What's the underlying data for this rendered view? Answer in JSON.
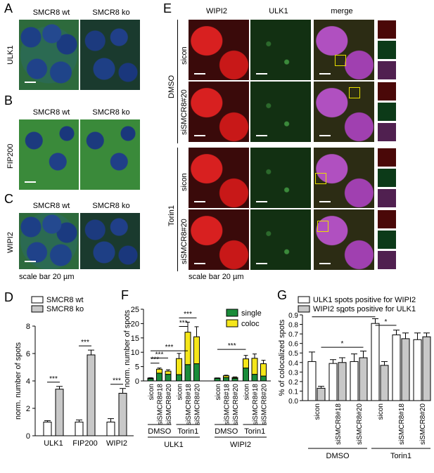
{
  "panels": {
    "A": {
      "letter": "A",
      "col_wt": "SMCR8 wt",
      "col_ko": "SMCR8 ko",
      "row": "ULK1"
    },
    "B": {
      "letter": "B",
      "col_wt": "SMCR8 wt",
      "col_ko": "SMCR8 ko",
      "row": "FIP200"
    },
    "C": {
      "letter": "C",
      "col_wt": "SMCR8 wt",
      "col_ko": "SMCR8 ko",
      "row": "WIPI2",
      "scale": "scale bar 20 µm"
    },
    "E": {
      "letter": "E",
      "col1": "WIPI2",
      "col2": "ULK1",
      "col3": "merge",
      "group1": "DMSO",
      "group2": "Torin1",
      "rows": [
        "sicon",
        "siSMCR8#20",
        "sicon",
        "siSMCR8#20"
      ],
      "scale": "scale bar 20 µm"
    },
    "D": {
      "letter": "D"
    },
    "F": {
      "letter": "F"
    },
    "G": {
      "letter": "G"
    }
  },
  "chart_data": [
    {
      "id": "D",
      "type": "bar",
      "ylabel": "norm. number of spots",
      "ylim": [
        0,
        8
      ],
      "yticks": [
        0,
        2,
        4,
        6,
        8
      ],
      "categories": [
        "ULK1",
        "FIP200",
        "WIPI2"
      ],
      "series": [
        {
          "name": "SMCR8 wt",
          "color": "#ffffff",
          "values": [
            1.0,
            1.0,
            1.0
          ],
          "errors": [
            0.1,
            0.15,
            0.25
          ]
        },
        {
          "name": "SMCR8 ko",
          "color": "#c8c8c8",
          "values": [
            3.4,
            5.9,
            3.1
          ],
          "errors": [
            0.2,
            0.35,
            0.35
          ]
        }
      ],
      "significance": [
        "***",
        "***",
        "***"
      ]
    },
    {
      "id": "F",
      "type": "bar",
      "ylabel": "norm. number of spots",
      "ylim": [
        0,
        25
      ],
      "yticks": [
        0,
        5,
        10,
        15,
        20,
        25
      ],
      "legend": [
        "single",
        "coloc"
      ],
      "colors": {
        "single": "#1a8c3a",
        "coloc": "#f5e61a"
      },
      "groups": [
        {
          "name": "ULK1",
          "subgroups": [
            {
              "name": "DMSO",
              "categories": [
                "sicon",
                "siSMCR8#18",
                "siSMCR8#20"
              ],
              "single": [
                0.8,
                2.7,
                2.3
              ],
              "coloc": [
                0.2,
                1.4,
                1.1
              ],
              "errors": [
                0.1,
                0.4,
                0.5
              ]
            },
            {
              "name": "Torin1",
              "categories": [
                "sicon",
                "siSMCR8#18",
                "siSMCR8#20"
              ],
              "single": [
                2.2,
                5.7,
                6.0
              ],
              "coloc": [
                5.6,
                11.3,
                9.4
              ],
              "errors": [
                1.8,
                3.5,
                3.5
              ]
            }
          ]
        },
        {
          "name": "WIPI2",
          "subgroups": [
            {
              "name": "DMSO",
              "categories": [
                "sicon",
                "siSMCR8#18",
                "siSMCR8#20"
              ],
              "single": [
                0.9,
                1.2,
                0.9
              ],
              "coloc": [
                0.1,
                0.6,
                0.3
              ],
              "errors": [
                0.05,
                0.2,
                0.2
              ]
            },
            {
              "name": "Torin1",
              "categories": [
                "sicon",
                "siSMCR8#18",
                "siSMCR8#20"
              ],
              "single": [
                4.5,
                2.3,
                1.7
              ],
              "coloc": [
                3.2,
                5.6,
                4.3
              ],
              "errors": [
                1.2,
                1.5,
                1.2
              ]
            }
          ]
        }
      ],
      "significance": "***"
    },
    {
      "id": "G",
      "type": "bar",
      "ylabel": "% of colocalized spots",
      "ylim": [
        0,
        0.9
      ],
      "yticks": [
        "0.0",
        "0.1",
        "0.2",
        "0.3",
        "0.4",
        "0.5",
        "0.6",
        "0.7",
        "0.8",
        "0.9"
      ],
      "series": [
        {
          "name": "ULK1 spots positive for WIPI2",
          "color": "#ffffff"
        },
        {
          "name": "WIPI2 spots positive for ULK1",
          "color": "#c8c8c8"
        }
      ],
      "categories": [
        "sicon",
        "siSMCR8#18",
        "siSMCR8#20",
        "sicon",
        "siSMCR8#18",
        "siSMCR8#20"
      ],
      "groups": [
        "DMSO",
        "Torin1"
      ],
      "values_ulk1": [
        0.41,
        0.39,
        0.41,
        0.81,
        0.69,
        0.64
      ],
      "values_wipi2": [
        0.13,
        0.4,
        0.45,
        0.37,
        0.65,
        0.67
      ],
      "errors_ulk1": [
        0.1,
        0.04,
        0.08,
        0.05,
        0.05,
        0.07
      ],
      "errors_wipi2": [
        0.02,
        0.05,
        0.07,
        0.04,
        0.06,
        0.04
      ],
      "significance": "*"
    }
  ]
}
